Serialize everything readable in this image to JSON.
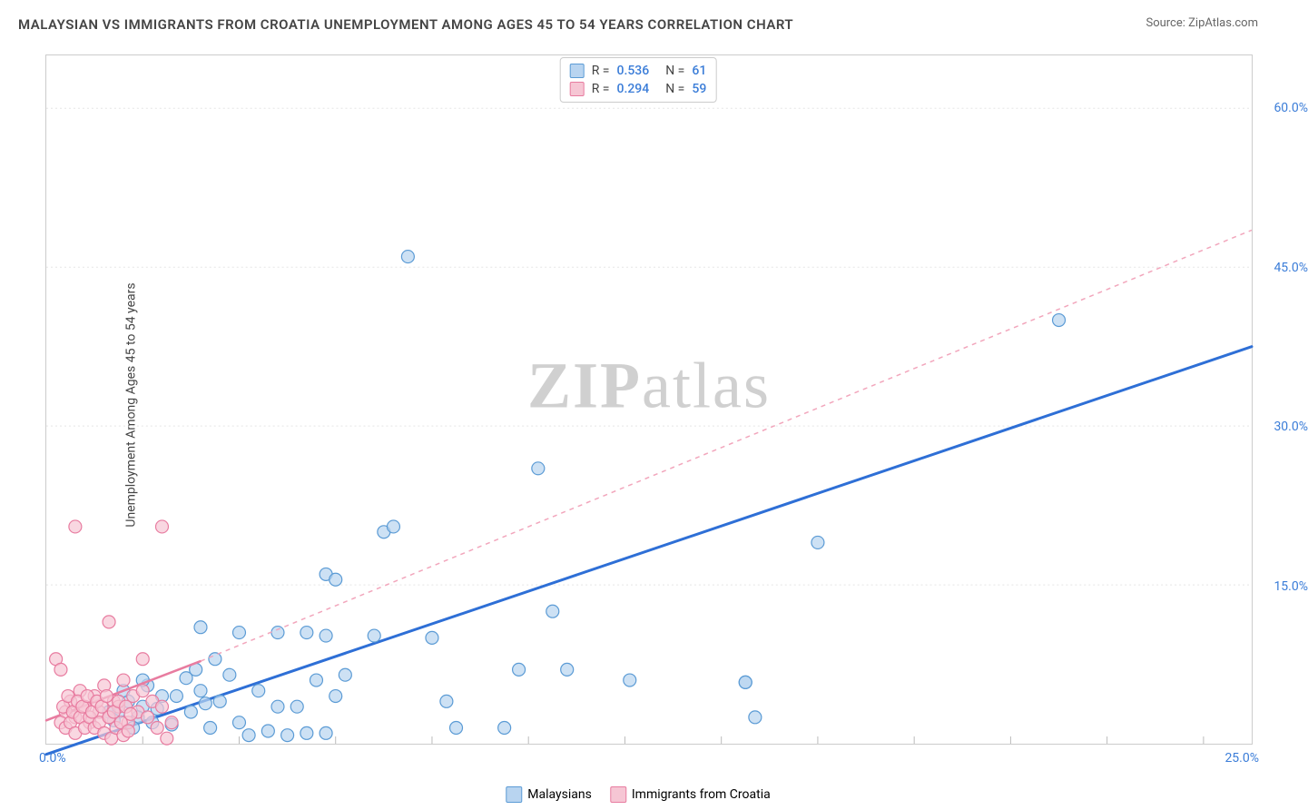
{
  "title": "MALAYSIAN VS IMMIGRANTS FROM CROATIA UNEMPLOYMENT AMONG AGES 45 TO 54 YEARS CORRELATION CHART",
  "source": "Source: ZipAtlas.com",
  "ylabel": "Unemployment Among Ages 45 to 54 years",
  "watermark": {
    "zip": "ZIP",
    "atlas": "atlas"
  },
  "legend_stats": [
    {
      "color_fill": "#b8d4f0",
      "color_stroke": "#5b9bd5",
      "r_label": "R =",
      "r_value": "0.536",
      "n_label": "N =",
      "n_value": "61"
    },
    {
      "color_fill": "#f6c6d4",
      "color_stroke": "#e87ca0",
      "r_label": "R =",
      "r_value": "0.294",
      "n_label": "N =",
      "n_value": "59"
    }
  ],
  "legend_series": [
    {
      "label": "Malaysians",
      "fill": "#b8d4f0",
      "stroke": "#5b9bd5"
    },
    {
      "label": "Immigrants from Croatia",
      "fill": "#f6c6d4",
      "stroke": "#e87ca0"
    }
  ],
  "chart": {
    "type": "scatter",
    "background_color": "#ffffff",
    "grid_color": "#e5e5e5",
    "xlim": [
      0,
      25.0
    ],
    "ylim": [
      0,
      65.0
    ],
    "x_origin_label": "0.0%",
    "x_max_label": "25.0%",
    "yticks": [
      15.0,
      30.0,
      45.0,
      60.0
    ],
    "ytick_labels": [
      "15.0%",
      "30.0%",
      "45.0%",
      "60.0%"
    ],
    "xticks_minor": [
      2,
      4,
      6,
      8,
      10,
      12,
      14,
      16,
      18,
      20,
      22,
      24
    ],
    "marker_radius": 7,
    "marker_stroke_width": 1.2,
    "series": [
      {
        "name": "Malaysians",
        "fill": "#b8d4f0",
        "stroke": "#5b9bd5",
        "fill_opacity": 0.7,
        "trend": {
          "type": "solid",
          "color": "#2e6fd6",
          "width": 3,
          "start": [
            0,
            -1.0
          ],
          "end": [
            25.0,
            37.5
          ]
        },
        "points": [
          [
            7.5,
            46.0
          ],
          [
            21.0,
            40.0
          ],
          [
            10.2,
            26.0
          ],
          [
            16.0,
            19.0
          ],
          [
            10.5,
            12.5
          ],
          [
            5.8,
            16.0
          ],
          [
            6.0,
            15.5
          ],
          [
            7.0,
            20.0
          ],
          [
            7.2,
            20.5
          ],
          [
            14.5,
            5.8
          ],
          [
            3.2,
            11.0
          ],
          [
            4.0,
            10.5
          ],
          [
            4.8,
            10.5
          ],
          [
            5.4,
            10.5
          ],
          [
            5.8,
            10.2
          ],
          [
            6.8,
            10.2
          ],
          [
            8.0,
            10.0
          ],
          [
            9.8,
            7.0
          ],
          [
            10.8,
            7.0
          ],
          [
            12.1,
            6.0
          ],
          [
            14.5,
            5.8
          ],
          [
            14.7,
            2.5
          ],
          [
            8.3,
            4.0
          ],
          [
            8.5,
            1.5
          ],
          [
            9.5,
            1.5
          ],
          [
            2.0,
            3.5
          ],
          [
            2.2,
            2.0
          ],
          [
            2.4,
            4.5
          ],
          [
            2.6,
            1.8
          ],
          [
            3.0,
            3.0
          ],
          [
            3.2,
            5.0
          ],
          [
            3.4,
            1.5
          ],
          [
            3.6,
            4.0
          ],
          [
            3.8,
            6.5
          ],
          [
            4.0,
            2.0
          ],
          [
            4.2,
            0.8
          ],
          [
            4.4,
            5.0
          ],
          [
            4.6,
            1.2
          ],
          [
            4.8,
            3.5
          ],
          [
            5.0,
            0.8
          ],
          [
            5.2,
            3.5
          ],
          [
            5.4,
            1.0
          ],
          [
            5.6,
            6.0
          ],
          [
            5.8,
            1.0
          ],
          [
            6.0,
            4.5
          ],
          [
            1.5,
            3.0
          ],
          [
            1.7,
            4.0
          ],
          [
            1.9,
            2.5
          ],
          [
            2.1,
            5.5
          ],
          [
            1.3,
            3.0
          ],
          [
            1.6,
            5.0
          ],
          [
            1.8,
            1.5
          ],
          [
            2.0,
            6.0
          ],
          [
            2.9,
            6.2
          ],
          [
            3.1,
            7.0
          ],
          [
            6.2,
            6.5
          ],
          [
            3.5,
            8.0
          ],
          [
            2.3,
            3.3
          ],
          [
            1.4,
            2.2
          ],
          [
            2.7,
            4.5
          ],
          [
            3.3,
            3.8
          ]
        ]
      },
      {
        "name": "Immigrants from Croatia",
        "fill": "#f6c6d4",
        "stroke": "#e87ca0",
        "fill_opacity": 0.7,
        "trend": {
          "type": "solid",
          "color": "#e87ca0",
          "width": 2.5,
          "start": [
            0,
            2.2
          ],
          "end": [
            3.2,
            7.8
          ]
        },
        "extrapolation": {
          "type": "dashed",
          "color": "#f2a6bc",
          "width": 1.5,
          "dash": "5,5",
          "start": [
            3.2,
            7.8
          ],
          "end": [
            25.0,
            48.5
          ]
        },
        "points": [
          [
            0.6,
            20.5
          ],
          [
            2.4,
            20.5
          ],
          [
            1.3,
            11.5
          ],
          [
            2.0,
            8.0
          ],
          [
            0.2,
            8.0
          ],
          [
            0.3,
            7.0
          ],
          [
            0.4,
            3.0
          ],
          [
            0.5,
            4.0
          ],
          [
            0.6,
            2.5
          ],
          [
            0.7,
            5.0
          ],
          [
            0.8,
            3.5
          ],
          [
            0.9,
            2.0
          ],
          [
            1.0,
            4.5
          ],
          [
            1.1,
            3.0
          ],
          [
            1.2,
            5.5
          ],
          [
            1.3,
            2.5
          ],
          [
            1.4,
            4.0
          ],
          [
            1.5,
            3.5
          ],
          [
            1.6,
            6.0
          ],
          [
            1.7,
            2.0
          ],
          [
            1.8,
            4.5
          ],
          [
            1.9,
            3.0
          ],
          [
            2.0,
            5.0
          ],
          [
            2.1,
            2.5
          ],
          [
            2.2,
            4.0
          ],
          [
            2.3,
            1.5
          ],
          [
            2.4,
            3.5
          ],
          [
            2.5,
            0.5
          ],
          [
            2.6,
            2.0
          ],
          [
            0.3,
            2.0
          ],
          [
            0.35,
            3.5
          ],
          [
            0.4,
            1.5
          ],
          [
            0.45,
            4.5
          ],
          [
            0.5,
            2.0
          ],
          [
            0.55,
            3.0
          ],
          [
            0.6,
            1.0
          ],
          [
            0.65,
            4.0
          ],
          [
            0.7,
            2.5
          ],
          [
            0.75,
            3.5
          ],
          [
            0.8,
            1.5
          ],
          [
            0.85,
            4.5
          ],
          [
            0.9,
            2.5
          ],
          [
            0.95,
            3.0
          ],
          [
            1.0,
            1.5
          ],
          [
            1.05,
            4.0
          ],
          [
            1.1,
            2.0
          ],
          [
            1.15,
            3.5
          ],
          [
            1.2,
            1.0
          ],
          [
            1.25,
            4.5
          ],
          [
            1.3,
            2.5
          ],
          [
            1.35,
            0.5
          ],
          [
            1.4,
            3.0
          ],
          [
            1.45,
            1.5
          ],
          [
            1.5,
            4.0
          ],
          [
            1.55,
            2.0
          ],
          [
            1.6,
            0.8
          ],
          [
            1.65,
            3.5
          ],
          [
            1.7,
            1.2
          ],
          [
            1.75,
            2.8
          ]
        ]
      }
    ]
  }
}
